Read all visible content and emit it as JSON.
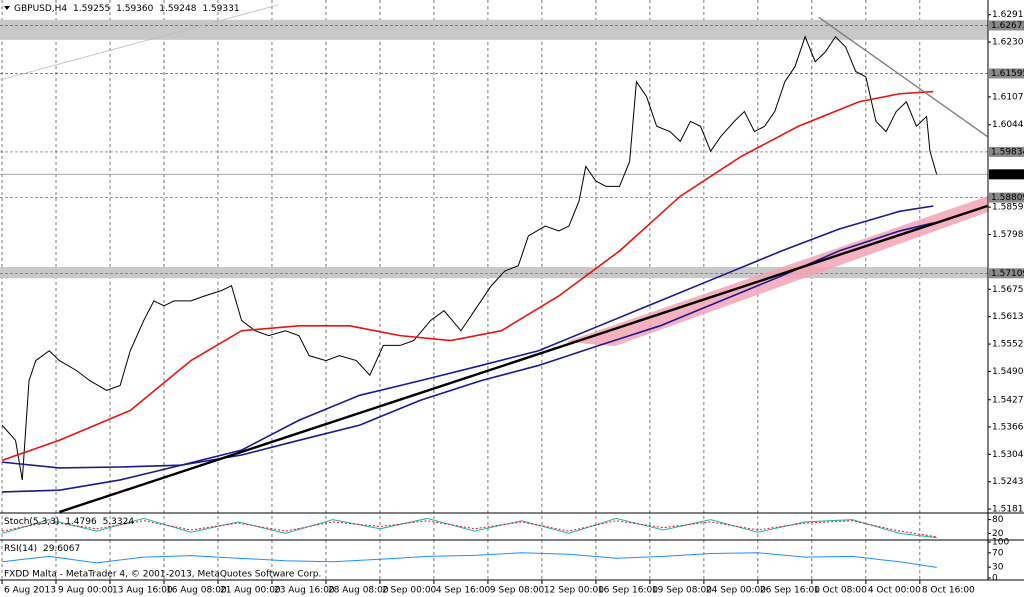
{
  "chart_data": [
    {
      "type": "line",
      "title": "GBPUSD,H4",
      "ohlc": [
        1.59255,
        {
          "value": 1.5936,
          "label": "1.59360"
        },
        1.59248,
        1.59331
      ],
      "xlim": [
        -0.6,
        292.2
      ],
      "xticks": [
        {
          "value": 0,
          "label": "6 Aug 2013"
        },
        {
          "value": 16,
          "label": "9 Aug 00:00"
        },
        {
          "value": 32,
          "label": "13 Aug 16:00"
        },
        {
          "value": 48,
          "label": "16 Aug 08:00"
        },
        {
          "value": 64,
          "label": "21 Aug 00:00"
        },
        {
          "value": 80,
          "label": "23 Aug 16:00"
        },
        {
          "value": 96,
          "label": "28 Aug 08:00"
        },
        {
          "value": 112,
          "label": "2 Sep 00:00"
        },
        {
          "value": 128,
          "label": "4 Sep 16:00"
        },
        {
          "value": 144,
          "label": "9 Sep 08:00"
        },
        {
          "value": 160,
          "label": "12 Sep 00:00"
        },
        {
          "value": 176,
          "label": "16 Sep 16:00"
        },
        {
          "value": 192,
          "label": "19 Sep 08:00"
        },
        {
          "value": 208,
          "label": "24 Sep 00:00"
        },
        {
          "value": 224,
          "label": "26 Sep 16:00"
        },
        {
          "value": 240,
          "label": "1 Oct 08:00"
        },
        {
          "value": 256,
          "label": "4 Oct 00:00"
        },
        {
          "value": 272,
          "label": "8 Oct 16:00"
        }
      ],
      "ylim": [
        1.5175,
        1.632
      ],
      "yticks": [
        1.62915,
        {
          "value": 1.623,
          "label": "1.62300"
        },
        {
          "value": 1.6107,
          "label": "1.61070"
        },
        1.60445,
        1.58595,
        {
          "value": 1.5798,
          "label": "1.57980"
        },
        {
          "value": 1.5675,
          "label": "1.56750"
        },
        1.56135,
        {
          "value": 1.5552,
          "label": "1.55520"
        },
        1.54905,
        {
          "value": 1.5427,
          "label": "1.54270"
        },
        {
          "value": 1.5366,
          "label": "1.53660"
        },
        1.53045,
        {
          "value": 1.5243,
          "label": "1.52430"
        },
        1.51815
      ],
      "grid": true,
      "zones": [
        [
          1.6235,
          1.628
        ],
        [
          1.57,
          1.5725
        ]
      ],
      "levels": [
        1.62673,
        1.61595,
        1.59834,
        1.58809,
        1.57109
      ],
      "series": [
        {
          "color": "#000000",
          "width": 1,
          "x": [
            0,
            4,
            6,
            8,
            10,
            14,
            17,
            22,
            26,
            31,
            35,
            38,
            42,
            45,
            48,
            51,
            56,
            60,
            65,
            68,
            71,
            75,
            79,
            84,
            88,
            91,
            96,
            100,
            105,
            109,
            113,
            118,
            122,
            127,
            131,
            136,
            140,
            145,
            149,
            153,
            156,
            161,
            165,
            168,
            171,
            173,
            176,
            179,
            183,
            186,
            188,
            191,
            194,
            198,
            201,
            204,
            207,
            210,
            213,
            217,
            220,
            223,
            226,
            229,
            232,
            235,
            238,
            241,
            244,
            247,
            250,
            253,
            256,
            259,
            262,
            265,
            268,
            271,
            274,
            275,
            277
          ],
          "values": [
            1.537,
            1.5336,
            1.5247,
            1.547,
            1.5515,
            1.5537,
            1.5515,
            1.5493,
            1.547,
            1.5448,
            1.5459,
            1.5537,
            1.5605,
            1.5649,
            1.5638,
            1.5649,
            1.5649,
            1.566,
            1.5672,
            1.5683,
            1.5605,
            1.5582,
            1.5571,
            1.5582,
            1.5571,
            1.5526,
            1.5515,
            1.5526,
            1.5515,
            1.5482,
            1.5549,
            1.5549,
            1.556,
            1.5605,
            1.5627,
            1.5582,
            1.5627,
            1.5683,
            1.5716,
            1.5728,
            1.5795,
            1.5817,
            1.5806,
            1.5817,
            1.5873,
            1.5951,
            1.5918,
            1.5906,
            1.5906,
            1.5962,
            1.6141,
            1.6108,
            1.6041,
            1.6029,
            1.6007,
            1.6052,
            1.6041,
            1.5985,
            1.6018,
            1.6052,
            1.6074,
            1.6029,
            1.6041,
            1.6074,
            1.6141,
            1.6175,
            1.6242,
            1.6186,
            1.6208,
            1.6242,
            1.6219,
            1.6164,
            1.6152,
            1.6052,
            1.6029,
            1.6074,
            1.6096,
            1.6041,
            1.6063,
            1.5985,
            1.59331
          ]
        },
        {
          "color": "#e8140e",
          "width": 1.6,
          "x": [
            0,
            17,
            38,
            56,
            71,
            88,
            103,
            118,
            133,
            148,
            165,
            183,
            201,
            219,
            236,
            254,
            266,
            276
          ],
          "values": [
            1.5291,
            1.5336,
            1.5403,
            1.5515,
            1.5582,
            1.5593,
            1.5593,
            1.5571,
            1.556,
            1.5582,
            1.566,
            1.5761,
            1.5884,
            1.5973,
            1.6041,
            1.6096,
            1.6114,
            1.6119
          ]
        },
        {
          "color": "#1a1a8c",
          "width": 1.6,
          "x": [
            0,
            17,
            35,
            53,
            71,
            88,
            106,
            124,
            142,
            159,
            177,
            195,
            213,
            231,
            248,
            266,
            276
          ],
          "values": [
            1.5287,
            1.5274,
            1.5276,
            1.528,
            1.5314,
            1.5381,
            1.5437,
            1.547,
            1.5504,
            1.5537,
            1.5593,
            1.5649,
            1.5705,
            1.5761,
            1.581,
            1.585,
            1.5862
          ]
        },
        {
          "color": "#1a1a8c",
          "width": 1.6,
          "x": [
            0,
            17,
            35,
            53,
            71,
            88,
            106,
            124,
            142,
            159,
            177,
            195,
            213,
            231,
            248,
            266,
            276
          ],
          "values": [
            1.522,
            1.5224,
            1.5247,
            1.528,
            1.5303,
            1.5336,
            1.537,
            1.5426,
            1.547,
            1.5504,
            1.5549,
            1.5593,
            1.5649,
            1.5705,
            1.5761,
            1.5806,
            1.5824
          ]
        },
        {
          "color": "#000000",
          "width": 2.4,
          "x": [
            17,
            292
          ],
          "values": [
            1.5175,
            1.5862
          ]
        },
        {
          "color": "#808080",
          "width": 1.4,
          "x": [
            242,
            292
          ],
          "values": [
            1.6286,
            1.6018
          ]
        }
      ]
    },
    {
      "type": "line",
      "title": "Stoch(5,3,3)",
      "ylim": [
        0,
        100
      ],
      "yticks": [
        20,
        80
      ],
      "series": [
        {
          "color": "#20b2aa",
          "width": 1,
          "x": [
            0,
            14,
            28,
            42,
            56,
            70,
            84,
            98,
            112,
            126,
            140,
            154,
            168,
            182,
            196,
            210,
            224,
            238,
            252,
            266,
            277
          ],
          "values": [
            20,
            80,
            30,
            85,
            25,
            70,
            20,
            80,
            40,
            85,
            30,
            75,
            20,
            85,
            35,
            80,
            25,
            70,
            80,
            20,
            1.4796
          ]
        },
        {
          "color": "#e8140e",
          "width": 1,
          "dash": true,
          "x": [
            0,
            14,
            28,
            42,
            56,
            70,
            84,
            98,
            112,
            126,
            140,
            154,
            168,
            182,
            196,
            210,
            224,
            238,
            252,
            266,
            277
          ],
          "values": [
            30,
            70,
            40,
            75,
            35,
            65,
            30,
            70,
            50,
            75,
            40,
            70,
            30,
            75,
            45,
            70,
            35,
            65,
            75,
            30,
            5.3324
          ]
        }
      ]
    },
    {
      "type": "line",
      "title": "RSI(14)",
      "ylim": [
        0,
        100
      ],
      "yticks": [
        0,
        30,
        70,
        100
      ],
      "series": [
        {
          "color": "#1e90ff",
          "width": 1,
          "x": [
            0,
            14,
            28,
            42,
            56,
            70,
            84,
            98,
            112,
            126,
            140,
            154,
            168,
            182,
            196,
            210,
            224,
            238,
            252,
            266,
            277
          ],
          "values": [
            45,
            60,
            42,
            58,
            62,
            55,
            48,
            45,
            52,
            60,
            63,
            70,
            66,
            55,
            60,
            68,
            70,
            58,
            60,
            45,
            29.6067
          ]
        }
      ]
    }
  ],
  "footer": "FXDD Malta - MetaTrader 4, © 2001-2013, MetaQuotes Software Corp."
}
